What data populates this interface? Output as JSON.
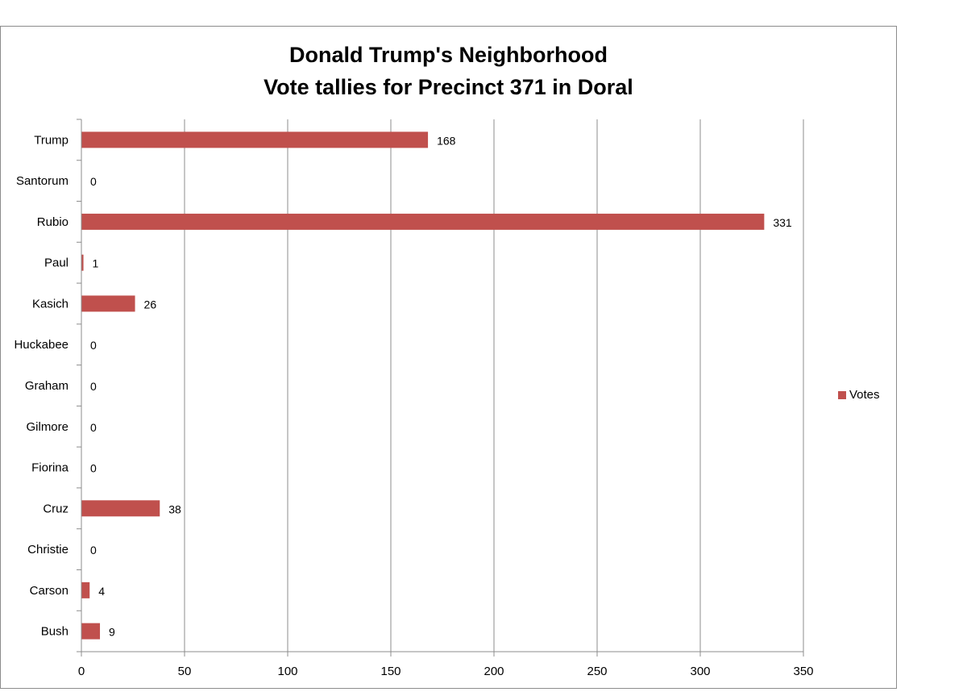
{
  "chart_data": {
    "type": "bar",
    "orientation": "horizontal",
    "title": "Donald Trump's Neighborhood",
    "subtitle": "Vote tallies for Precinct 371 in Doral",
    "categories": [
      "Trump",
      "Santorum",
      "Rubio",
      "Paul",
      "Kasich",
      "Huckabee",
      "Graham",
      "Gilmore",
      "Fiorina",
      "Cruz",
      "Christie",
      "Carson",
      "Bush"
    ],
    "series": [
      {
        "name": "Votes",
        "values": [
          168,
          0,
          331,
          1,
          26,
          0,
          0,
          0,
          0,
          38,
          0,
          4,
          9
        ],
        "color": "#c0504d"
      }
    ],
    "xlim": [
      0,
      350
    ],
    "xticks": [
      0,
      50,
      100,
      150,
      200,
      250,
      300,
      350
    ],
    "grid": "vertical",
    "legend": "right"
  }
}
